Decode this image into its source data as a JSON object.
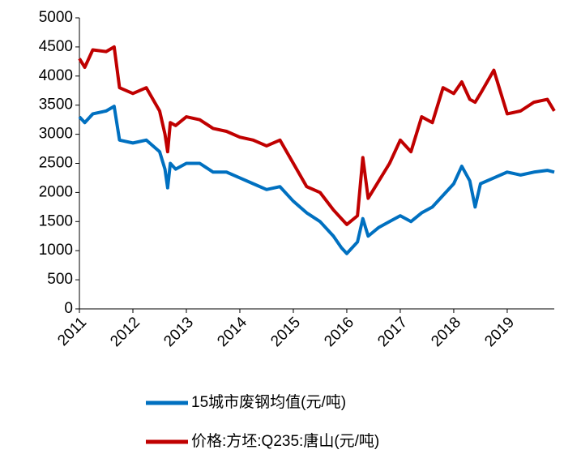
{
  "chart_data": {
    "type": "line",
    "x": [
      2011.0,
      2011.1,
      2011.25,
      2011.5,
      2011.65,
      2011.75,
      2012.0,
      2012.25,
      2012.5,
      2012.6,
      2012.65,
      2012.7,
      2012.8,
      2013.0,
      2013.25,
      2013.5,
      2013.75,
      2014.0,
      2014.25,
      2014.5,
      2014.75,
      2015.0,
      2015.25,
      2015.5,
      2015.75,
      2015.9,
      2016.0,
      2016.2,
      2016.3,
      2016.4,
      2016.6,
      2016.8,
      2017.0,
      2017.2,
      2017.4,
      2017.6,
      2017.8,
      2018.0,
      2018.15,
      2018.3,
      2018.4,
      2018.5,
      2018.75,
      2019.0,
      2019.25,
      2019.5,
      2019.75,
      2019.88
    ],
    "series": [
      {
        "name": "15城市废钢均值(元/吨)",
        "color": "#0070c0",
        "values": [
          3300,
          3200,
          3350,
          3400,
          3480,
          2900,
          2850,
          2900,
          2700,
          2400,
          2080,
          2500,
          2400,
          2500,
          2500,
          2350,
          2350,
          2250,
          2150,
          2050,
          2100,
          1850,
          1650,
          1500,
          1250,
          1050,
          950,
          1150,
          1550,
          1250,
          1400,
          1500,
          1600,
          1500,
          1650,
          1750,
          1950,
          2150,
          2450,
          2200,
          1750,
          2150,
          2250,
          2350,
          2300,
          2350,
          2380,
          2350
        ]
      },
      {
        "name": "价格:方坯:Q235:唐山(元/吨)",
        "color": "#c00000",
        "values": [
          4300,
          4150,
          4450,
          4420,
          4500,
          3800,
          3700,
          3800,
          3400,
          3000,
          2700,
          3200,
          3150,
          3300,
          3250,
          3100,
          3050,
          2950,
          2900,
          2800,
          2900,
          2500,
          2100,
          2000,
          1700,
          1550,
          1450,
          1600,
          2600,
          1900,
          2200,
          2500,
          2900,
          2700,
          3300,
          3200,
          3800,
          3700,
          3900,
          3600,
          3550,
          3700,
          4100,
          3350,
          3400,
          3550,
          3600,
          3400
        ]
      }
    ],
    "xlim": [
      2011,
      2019.88
    ],
    "xticks": [
      2011,
      2012,
      2013,
      2014,
      2015,
      2016,
      2017,
      2018,
      2019
    ],
    "ylim": [
      0,
      5000
    ],
    "yticks": [
      0,
      500,
      1000,
      1500,
      2000,
      2500,
      3000,
      3500,
      4000,
      4500,
      5000
    ],
    "grid": false,
    "legend": "bottom"
  }
}
